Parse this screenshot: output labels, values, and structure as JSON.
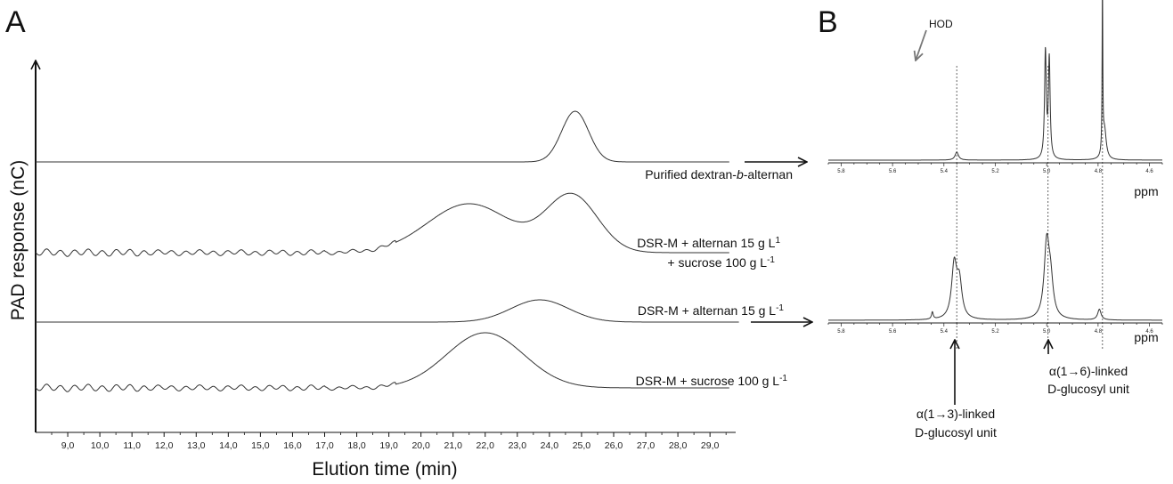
{
  "panels": {
    "a_letter": "A",
    "b_letter": "B"
  },
  "chart_data": [
    {
      "type": "line",
      "panel": "A",
      "title": "",
      "xlabel": "Elution time (min)",
      "ylabel": "PAD response (nC)",
      "xlim": [
        8.0,
        29.8
      ],
      "x_ticks": [
        "9,0",
        "10,0",
        "11,0",
        "12,0",
        "13,0",
        "14,0",
        "15,0",
        "16,0",
        "17,0",
        "18,0",
        "19,0",
        "20,0",
        "21,0",
        "22,0",
        "23,0",
        "24,0",
        "25,0",
        "26,0",
        "27,0",
        "28,0",
        "29,0"
      ],
      "y_ticks": [],
      "grid": false,
      "series": [
        {
          "name": "Purified dextran-b-alternan",
          "label_parts": [
            {
              "t": "Purified dextran-",
              "italic": false
            },
            {
              "t": "b",
              "italic": true
            },
            {
              "t": "-alternan",
              "italic": false
            }
          ],
          "peaks": [
            {
              "x": 24.8,
              "height": 57,
              "width": 0.42
            }
          ],
          "oscillation": false
        },
        {
          "name": "DSR-M + alternan 15 g L1 + sucrose 100 g L-1",
          "label_lines": [
            [
              {
                "t": "DSR-M + alternan 15 g L",
                "sup": false
              },
              {
                "t": "1",
                "sup": true
              }
            ],
            [
              {
                "t": "+ sucrose 100 g L",
                "sup": false
              },
              {
                "t": "-1",
                "sup": true
              }
            ]
          ],
          "peaks": [
            {
              "x": 21.5,
              "height": 55,
              "width": 1.3
            },
            {
              "x": 24.7,
              "height": 64,
              "width": 0.8
            }
          ],
          "oscillation": true
        },
        {
          "name": "DSR-M + alternan 15 g L-1",
          "label_parts": [
            {
              "t": "DSR-M + alternan 15 g L",
              "sup": false
            },
            {
              "t": "-1",
              "sup": true
            }
          ],
          "peaks": [
            {
              "x": 23.7,
              "height": 25,
              "width": 0.9
            }
          ],
          "oscillation": false
        },
        {
          "name": "DSR-M + sucrose 100 g L-1",
          "label_parts": [
            {
              "t": "DSR-M + sucrose 100 g L",
              "sup": false
            },
            {
              "t": "-1",
              "sup": true
            }
          ],
          "peaks": [
            {
              "x": 22.0,
              "height": 62,
              "width": 1.2
            }
          ],
          "oscillation": true
        }
      ]
    },
    {
      "type": "line",
      "panel": "B",
      "title": "",
      "xlabel": "ppm",
      "reversed_x": true,
      "xlim": [
        5.85,
        4.55
      ],
      "x_ticks": [
        "5.8",
        "5.6",
        "5.4",
        "5.2",
        "5.0",
        "4.8",
        "4.6"
      ],
      "grid": false,
      "spectra": [
        {
          "id": "top",
          "peaks": [
            {
              "ppm": 5.35,
              "height": 9,
              "width": 0.008
            },
            {
              "ppm": 5.005,
              "height": 120,
              "width": 0.004
            },
            {
              "ppm": 4.99,
              "height": 112,
              "width": 0.004
            },
            {
              "ppm": 4.783,
              "height": 190,
              "width": 0.0015
            },
            {
              "ppm": 4.775,
              "height": 34,
              "width": 0.008
            }
          ]
        },
        {
          "id": "bottom",
          "peaks": [
            {
              "ppm": 5.445,
              "height": 8,
              "width": 0.004
            },
            {
              "ppm": 5.36,
              "height": 60,
              "width": 0.012
            },
            {
              "ppm": 5.34,
              "height": 40,
              "width": 0.012
            },
            {
              "ppm": 5.0,
              "height": 82,
              "width": 0.012
            },
            {
              "ppm": 4.985,
              "height": 38,
              "width": 0.012
            },
            {
              "ppm": 4.795,
              "height": 12,
              "width": 0.008
            }
          ]
        }
      ],
      "reference_lines_ppm": [
        5.35,
        4.995,
        4.783
      ],
      "annotations": {
        "hod": "HOD",
        "a13_line1": "α(1→3)-linked",
        "a13_line2": "D-glucosyl unit",
        "a16_line1": "α(1→6)-linked",
        "a16_line2": "D-glucosyl unit"
      }
    }
  ]
}
